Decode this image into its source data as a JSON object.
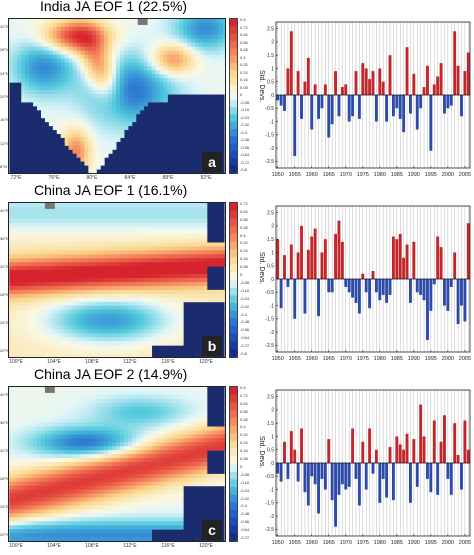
{
  "panels": [
    {
      "title": "India JA EOF 1 (22.5%)",
      "letter": "a",
      "map_kind": "india",
      "lat_labels": [
        "32°N",
        "28°N",
        "24°N",
        "20°N",
        "16°N",
        "12°N",
        "8°N"
      ],
      "lon_labels": [
        "72°E",
        "76°E",
        "80°E",
        "84°E",
        "88°E",
        "92°E"
      ],
      "colorbar_ticks": [
        "0.8",
        "0.72",
        "0.64",
        "0.56",
        "0.48",
        "0.4",
        "0.32",
        "0.24",
        "0.16",
        "0.08",
        "0",
        "-0.08",
        "-0.16",
        "-0.24",
        "-0.32",
        "-0.4",
        "-0.48",
        "-0.56",
        "-0.64",
        "-0.72",
        "-0.8"
      ],
      "colorbar_title": "Std. Devs."
    },
    {
      "title": "China JA EOF 1 (16.1%)",
      "letter": "b",
      "map_kind": "china1",
      "lat_labels": [
        "40°N",
        "36°N",
        "32°N",
        "28°N",
        "24°N",
        "20°N"
      ],
      "lon_labels": [
        "100°E",
        "104°E",
        "108°E",
        "112°E",
        "116°E",
        "120°E"
      ],
      "colorbar_ticks": [
        "0.72",
        "0.64",
        "0.56",
        "0.48",
        "0.4",
        "0.32",
        "0.24",
        "0.16",
        "0.08",
        "0",
        "-0.08",
        "-0.16",
        "-0.24",
        "-0.32",
        "-0.4",
        "-0.48",
        "-0.56",
        "-0.64",
        "-0.72",
        "-0.8"
      ],
      "colorbar_title": "Std. Devs."
    },
    {
      "title": "China JA EOF 2 (14.9%)",
      "letter": "c",
      "map_kind": "china2",
      "lat_labels": [
        "40°N",
        "36°N",
        "32°N",
        "28°N",
        "24°N",
        "20°N"
      ],
      "lon_labels": [
        "100°E",
        "104°E",
        "108°E",
        "112°E",
        "116°E",
        "120°E"
      ],
      "colorbar_ticks": [
        "0.8",
        "0.72",
        "0.64",
        "0.56",
        "0.48",
        "0.4",
        "0.32",
        "0.24",
        "0.16",
        "0.08",
        "0",
        "-0.08",
        "-0.16",
        "-0.24",
        "-0.32",
        "-0.4",
        "-0.48",
        "-0.56",
        "-0.64",
        "-0.72"
      ],
      "colorbar_title": "Std. Devs."
    }
  ],
  "colors": {
    "positive": "#c0262a",
    "negative": "#2d4aa8",
    "ocean": "#1a2b6e",
    "grid": "#bbbbbb"
  },
  "chart_data": [
    {
      "type": "bar",
      "x": [
        1950,
        1951,
        1952,
        1953,
        1954,
        1955,
        1956,
        1957,
        1958,
        1959,
        1960,
        1961,
        1962,
        1963,
        1964,
        1965,
        1966,
        1967,
        1968,
        1969,
        1970,
        1971,
        1972,
        1973,
        1974,
        1975,
        1976,
        1977,
        1978,
        1979,
        1980,
        1981,
        1982,
        1983,
        1984,
        1985,
        1986,
        1987,
        1988,
        1989,
        1990,
        1991,
        1992,
        1993,
        1994,
        1995,
        1996,
        1997,
        1998,
        1999,
        2000,
        2001,
        2002,
        2003,
        2004,
        2005,
        2006
      ],
      "values": [
        -0.2,
        -0.4,
        -0.6,
        1.0,
        2.4,
        -2.3,
        0.9,
        -0.9,
        0.5,
        1.4,
        -1.3,
        0.4,
        -0.9,
        -0.5,
        0.4,
        -1.6,
        -1.1,
        0.9,
        -0.8,
        0.3,
        0.4,
        -1.0,
        -0.8,
        0.9,
        -0.9,
        1.2,
        1.0,
        0.6,
        0.9,
        -1.0,
        1.0,
        0.5,
        -1.0,
        1.5,
        -0.8,
        -0.5,
        -0.9,
        -1.4,
        1.8,
        -0.7,
        0.8,
        -1.3,
        -0.5,
        0.3,
        1.1,
        -2.1,
        0.4,
        0.7,
        1.2,
        -0.7,
        -0.5,
        -0.4,
        2.4,
        1.1,
        -0.8,
        0.9,
        1.6
      ],
      "xlim": [
        1950,
        2006
      ],
      "ylim": [
        -2.75,
        2.75
      ],
      "x_ticks": [
        1950,
        1955,
        1960,
        1965,
        1970,
        1975,
        1980,
        1985,
        1990,
        1995,
        2000,
        2005
      ],
      "y_ticks": [
        2.5,
        2,
        1.5,
        1,
        0.5,
        0,
        -0.5,
        -1,
        -1.5,
        -2,
        -2.5
      ],
      "grid": true
    },
    {
      "type": "bar",
      "x": [
        1950,
        1951,
        1952,
        1953,
        1954,
        1955,
        1956,
        1957,
        1958,
        1959,
        1960,
        1961,
        1962,
        1963,
        1964,
        1965,
        1966,
        1967,
        1968,
        1969,
        1970,
        1971,
        1972,
        1973,
        1974,
        1975,
        1976,
        1977,
        1978,
        1979,
        1980,
        1981,
        1982,
        1983,
        1984,
        1985,
        1986,
        1987,
        1988,
        1989,
        1990,
        1991,
        1992,
        1993,
        1994,
        1995,
        1996,
        1997,
        1998,
        1999,
        2000,
        2001,
        2002,
        2003,
        2004,
        2005,
        2006
      ],
      "values": [
        1.5,
        -1.1,
        0.9,
        -0.3,
        1.3,
        -1.5,
        1.0,
        2.0,
        -1.3,
        1.1,
        1.6,
        1.9,
        -1.4,
        1.0,
        1.5,
        -0.5,
        -0.5,
        1.7,
        2.2,
        1.4,
        -0.3,
        -0.5,
        -0.7,
        -0.9,
        -1.3,
        0.2,
        -0.5,
        -1.1,
        0.3,
        -0.5,
        -0.8,
        -0.6,
        -0.9,
        -0.6,
        1.6,
        1.5,
        1.7,
        0.8,
        1.3,
        -0.9,
        1.4,
        -0.5,
        -0.6,
        -0.8,
        -2.3,
        -1.2,
        -0.2,
        1.6,
        1.2,
        -1.0,
        -1.2,
        -0.3,
        1.0,
        -1.7,
        -1.0,
        -1.6,
        2.1
      ],
      "xlim": [
        1950,
        2006
      ],
      "ylim": [
        -2.75,
        2.75
      ],
      "x_ticks": [
        1950,
        1955,
        1960,
        1965,
        1970,
        1975,
        1980,
        1985,
        1990,
        1995,
        2000,
        2005
      ],
      "y_ticks": [
        2.5,
        2,
        1.5,
        1,
        0.5,
        0,
        -0.5,
        -1,
        -1.5,
        -2,
        -2.5
      ],
      "grid": true
    },
    {
      "type": "bar",
      "x": [
        1950,
        1951,
        1952,
        1953,
        1954,
        1955,
        1956,
        1957,
        1958,
        1959,
        1960,
        1961,
        1962,
        1963,
        1964,
        1965,
        1966,
        1967,
        1968,
        1969,
        1970,
        1971,
        1972,
        1973,
        1974,
        1975,
        1976,
        1977,
        1978,
        1979,
        1980,
        1981,
        1982,
        1983,
        1984,
        1985,
        1986,
        1987,
        1988,
        1989,
        1990,
        1991,
        1992,
        1993,
        1994,
        1995,
        1996,
        1997,
        1998,
        1999,
        2000,
        2001,
        2002,
        2003,
        2004,
        2005,
        2006
      ],
      "values": [
        -0.4,
        -0.7,
        0.8,
        -0.6,
        1.2,
        0.5,
        -0.7,
        1.3,
        -1.1,
        -1.6,
        -0.5,
        -0.8,
        -1.9,
        -0.6,
        -1.0,
        0.9,
        -1.4,
        -2.4,
        -1.2,
        -0.8,
        -1.0,
        -0.9,
        1.3,
        -0.6,
        -1.6,
        0.8,
        -1.0,
        1.3,
        -0.4,
        0.5,
        -1.5,
        -0.6,
        -1.3,
        0.6,
        -1.4,
        1.0,
        0.7,
        0.5,
        1.1,
        -1.5,
        0.9,
        -0.9,
        2.2,
        1.0,
        -0.6,
        -1.1,
        1.6,
        -1.2,
        0.8,
        1.8,
        -0.6,
        -1.2,
        1.5,
        0.3,
        -1.0,
        1.6,
        0.5
      ],
      "xlim": [
        1950,
        2006
      ],
      "ylim": [
        -2.75,
        2.75
      ],
      "x_ticks": [
        1950,
        1955,
        1960,
        1965,
        1970,
        1975,
        1980,
        1985,
        1990,
        1995,
        2000,
        2005
      ],
      "y_ticks": [
        2.5,
        2,
        1.5,
        1,
        0.5,
        0,
        -0.5,
        -1,
        -1.5,
        -2,
        -2.5
      ],
      "grid": true
    }
  ]
}
